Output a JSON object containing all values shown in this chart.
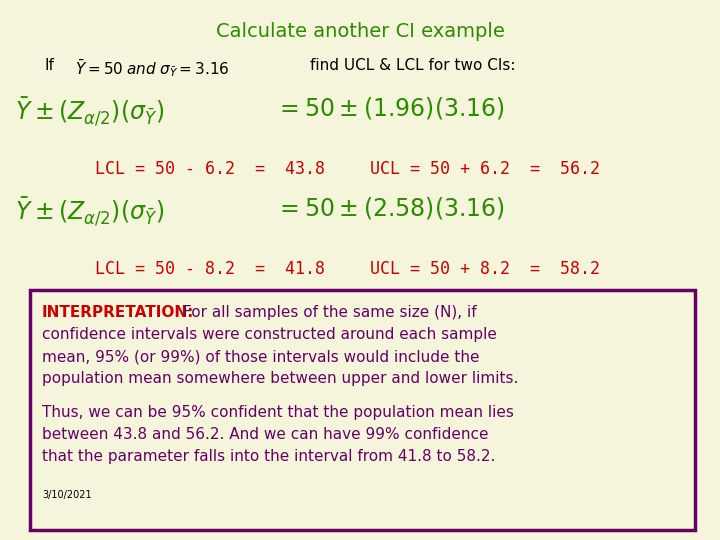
{
  "title": "Calculate another CI example",
  "title_color": "#2e8b00",
  "bg_color": "#f5f5dc",
  "title_fontsize": 14,
  "if_text": "If",
  "find_text": "find UCL & LCL for two CIs:",
  "lcl1_text": "LCL = 50 - 6.2  =  43.8",
  "ucl1_text": "UCL = 50 + 6.2  =  56.2",
  "lcl2_text": "LCL = 50 - 8.2  =  41.8",
  "ucl2_text": "UCL = 50 + 8.2  =  58.2",
  "red_color": "#cc0000",
  "dark_green": "#2e8b00",
  "black": "#000000",
  "purple_border": "#660066",
  "purple_text": "#660066",
  "interp_label": "INTERPRETATION:",
  "interp_label_color": "#cc0000",
  "interp_line1": "INTERPRETATION: For all samples of the same size (N), if",
  "interp_line2": "confidence intervals were constructed around each sample",
  "interp_line3": "mean, 95% (or 99%) of those intervals would include the",
  "interp_line4": "population mean somewhere between upper and lower limits.",
  "thus_line1": "Thus, we can be 95% confident that the population mean lies",
  "thus_line2": "between 43.8 and 56.2. And we can have 99% confidence",
  "thus_line3": "that the parameter falls into the interval from 41.8 to 58.2.",
  "date_text": "3/10/2021",
  "formula1_left": "$\\bar{Y} \\pm (Z_{\\alpha/2})(\\sigma_{\\bar{Y}})$",
  "formula1_eq": "$= 50 \\pm (1.96)(3.16)$",
  "formula2_left": "$\\bar{Y} \\pm (Z_{\\alpha/2})(\\sigma_{\\bar{Y}})$",
  "formula2_eq": "$= 50 \\pm (2.58)(3.16)$",
  "if_formula": "$\\bar{Y} = 50 \\; and \\; \\sigma_{\\bar{Y}} = 3.16$"
}
